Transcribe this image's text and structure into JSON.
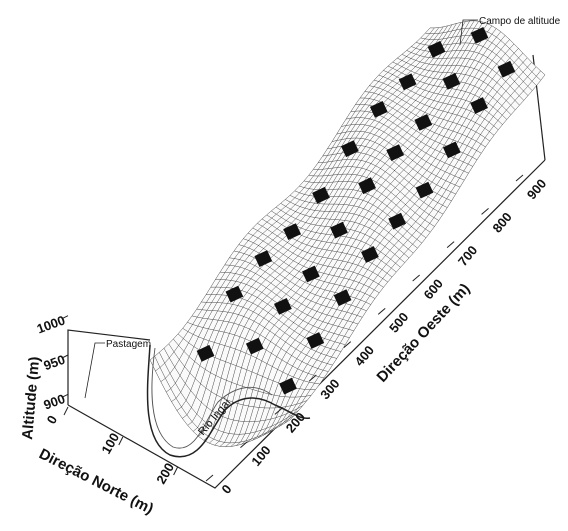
{
  "chart_data": {
    "type": "surface",
    "axes": {
      "x": {
        "label": "Direção Oeste (m)",
        "ticks": [
          0,
          100,
          200,
          300,
          400,
          500,
          600,
          700,
          800,
          900
        ],
        "range": [
          0,
          900
        ]
      },
      "y": {
        "label": "Direção Norte (m)",
        "ticks": [
          0,
          100,
          200
        ],
        "range": [
          0,
          250
        ]
      },
      "z": {
        "label": "Altitude (m)",
        "ticks": [
          900,
          950,
          1000
        ],
        "range": [
          880,
          1020
        ]
      }
    },
    "annotations": {
      "pastagem": "Pastagem",
      "campo": "Campo de altitude",
      "rio": "Rio Ingaí"
    },
    "grid": true
  }
}
